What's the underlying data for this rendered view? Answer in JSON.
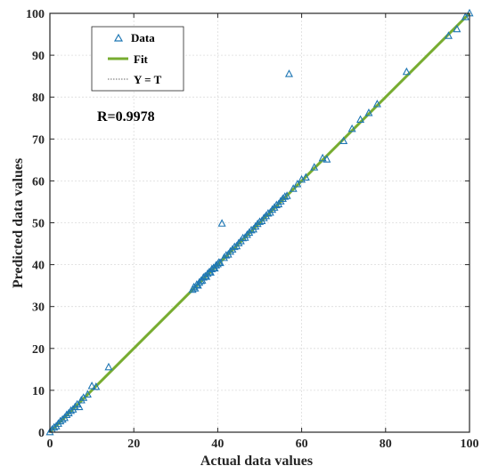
{
  "chart_data": {
    "type": "scatter",
    "xlabel": "Actual data values",
    "ylabel": "Predicted data values",
    "xlim": [
      0,
      100
    ],
    "ylim": [
      0,
      100
    ],
    "x_ticks": [
      "0",
      "20",
      "40",
      "60",
      "80",
      "100"
    ],
    "y_ticks": [
      "0",
      "10",
      "20",
      "30",
      "40",
      "50",
      "60",
      "70",
      "80",
      "90",
      "100"
    ],
    "grid": true,
    "legend_position": "top-left",
    "legend": [
      "Data",
      "Fit",
      "Y = T"
    ],
    "annotation": "R=0.9978",
    "colors": {
      "data": "#1f77b4",
      "fit": "#77ac30",
      "identity": "#666666"
    },
    "series": [
      {
        "name": "Data",
        "marker": "triangle",
        "points": [
          [
            0,
            0
          ],
          [
            0.5,
            0.6
          ],
          [
            1,
            1.1
          ],
          [
            1.5,
            1.4
          ],
          [
            2,
            2
          ],
          [
            2.5,
            2.6
          ],
          [
            3,
            3
          ],
          [
            3.5,
            3.4
          ],
          [
            4,
            4.1
          ],
          [
            4.5,
            4.5
          ],
          [
            5,
            5.1
          ],
          [
            5.5,
            5.4
          ],
          [
            6,
            6
          ],
          [
            6.5,
            6.6
          ],
          [
            7,
            6
          ],
          [
            7.5,
            7.6
          ],
          [
            8,
            8.2
          ],
          [
            9,
            9
          ],
          [
            10,
            11
          ],
          [
            11,
            10.8
          ],
          [
            14,
            15.5
          ],
          [
            34,
            34
          ],
          [
            34.3,
            34.6
          ],
          [
            34.6,
            34.3
          ],
          [
            35,
            35.2
          ],
          [
            35.3,
            35
          ],
          [
            35.6,
            35.7
          ],
          [
            36,
            36.1
          ],
          [
            36.3,
            36.2
          ],
          [
            36.6,
            36.9
          ],
          [
            37,
            37.2
          ],
          [
            37.3,
            37.1
          ],
          [
            37.6,
            37.8
          ],
          [
            38,
            38.2
          ],
          [
            38.3,
            38.1
          ],
          [
            38.6,
            38.9
          ],
          [
            39,
            39.2
          ],
          [
            39.3,
            39.1
          ],
          [
            39.6,
            39.8
          ],
          [
            40,
            40.1
          ],
          [
            40.3,
            40.5
          ],
          [
            40.6,
            40.4
          ],
          [
            41,
            49.8
          ],
          [
            41.5,
            41.6
          ],
          [
            42,
            42.2
          ],
          [
            42.5,
            42.4
          ],
          [
            43,
            43.1
          ],
          [
            43.5,
            43.6
          ],
          [
            44,
            44.2
          ],
          [
            44.5,
            44.4
          ],
          [
            45,
            45.1
          ],
          [
            45.5,
            45.6
          ],
          [
            46,
            46.3
          ],
          [
            46.5,
            46.4
          ],
          [
            47,
            47.1
          ],
          [
            47.5,
            47.6
          ],
          [
            48,
            48.2
          ],
          [
            48.5,
            48.4
          ],
          [
            49,
            49.1
          ],
          [
            49.5,
            49.7
          ],
          [
            50,
            50.2
          ],
          [
            50.5,
            50.4
          ],
          [
            51,
            51.1
          ],
          [
            51.5,
            51.6
          ],
          [
            52,
            52.2
          ],
          [
            52.5,
            52.4
          ],
          [
            53,
            53.1
          ],
          [
            53.5,
            53.6
          ],
          [
            54,
            54.2
          ],
          [
            54.5,
            54.4
          ],
          [
            55,
            55.1
          ],
          [
            55.5,
            55.7
          ],
          [
            56,
            56.2
          ],
          [
            56.5,
            56.4
          ],
          [
            57,
            85.5
          ],
          [
            58,
            58.1
          ],
          [
            59,
            59.2
          ],
          [
            60,
            60.3
          ],
          [
            61,
            60.8
          ],
          [
            63,
            63.2
          ],
          [
            65,
            65.4
          ],
          [
            66,
            65.1
          ],
          [
            70,
            69.5
          ],
          [
            72,
            72.4
          ],
          [
            74,
            74.6
          ],
          [
            76,
            76.2
          ],
          [
            78,
            78.3
          ],
          [
            85,
            86
          ],
          [
            95,
            94.6
          ],
          [
            97,
            96.2
          ],
          [
            99,
            99.1
          ],
          [
            100,
            100
          ]
        ]
      },
      {
        "name": "Fit",
        "points": [
          [
            0,
            0
          ],
          [
            100,
            100
          ]
        ]
      },
      {
        "name": "Y = T",
        "points": [
          [
            0,
            0
          ],
          [
            100,
            100
          ]
        ]
      }
    ]
  }
}
